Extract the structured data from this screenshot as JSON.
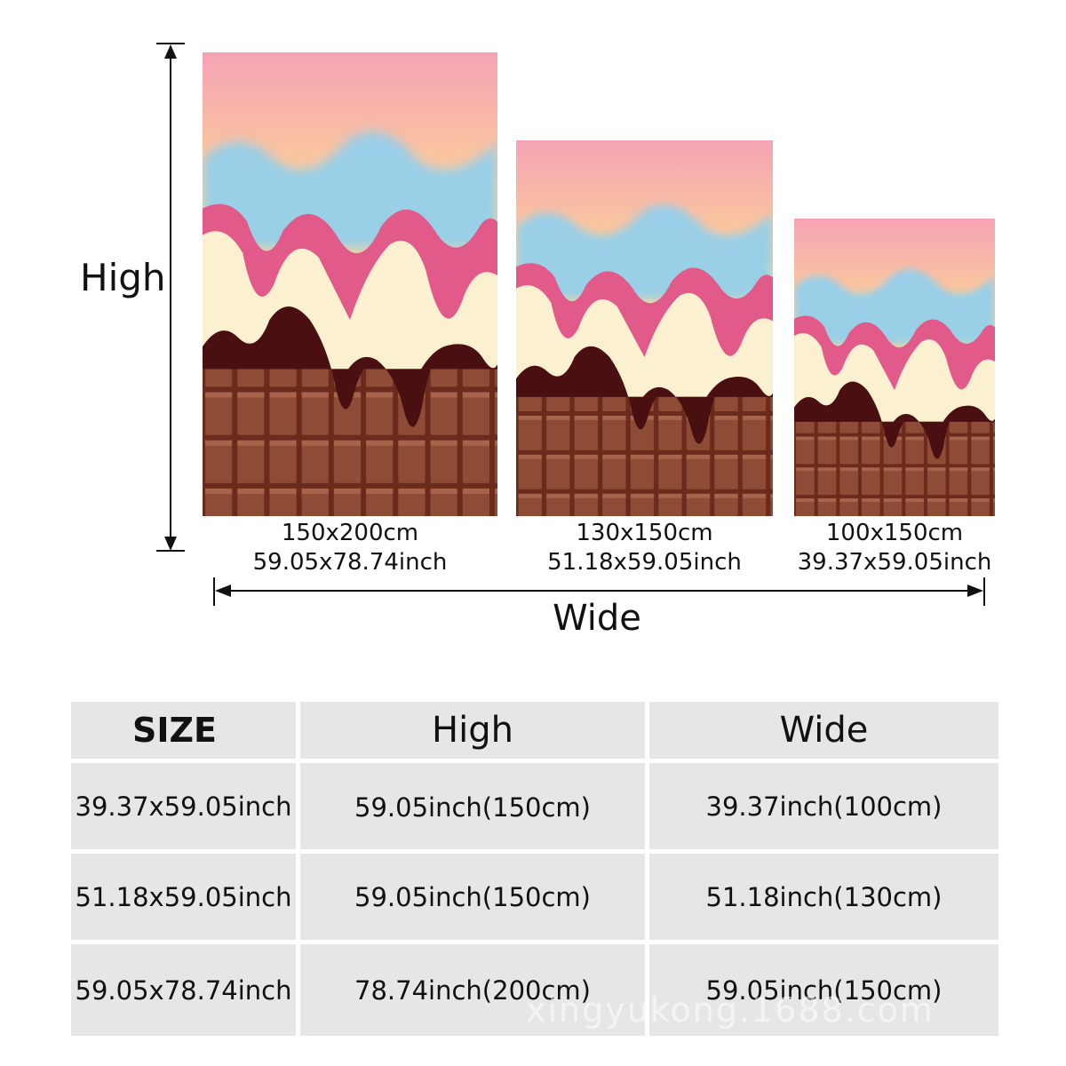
{
  "labels": {
    "high": "High",
    "wide": "Wide"
  },
  "panels": [
    {
      "size_cm": "150x200cm",
      "size_inch": "59.05x78.74inch"
    },
    {
      "size_cm": "130x150cm",
      "size_inch": "51.18x59.05inch"
    },
    {
      "size_cm": "100x150cm",
      "size_inch": "39.37x59.05inch"
    }
  ],
  "table": {
    "headers": {
      "size": "SIZE",
      "high": "High",
      "wide": "Wide"
    },
    "rows": [
      {
        "size": "39.37x59.05inch",
        "high": "59.05inch(150cm)",
        "wide": "39.37inch(100cm)"
      },
      {
        "size": "51.18x59.05inch",
        "high": "59.05inch(150cm)",
        "wide": "51.18inch(130cm)"
      },
      {
        "size": "59.05x78.74inch",
        "high": "78.74inch(200cm)",
        "wide": "59.05inch(150cm)"
      }
    ]
  },
  "watermark": "xingyukong.1688.com",
  "colors": {
    "sky_pink": "#f4a8b4",
    "sky_yellow": "#fcd793",
    "sky_blue": "#8fd0f0",
    "drip_pink": "#e25a8a",
    "cream": "#fbf0cf",
    "dark_chocolate": "#4a0f10",
    "chocolate_bar": "#8b4a34",
    "table_cell": "#e6e6e6"
  }
}
